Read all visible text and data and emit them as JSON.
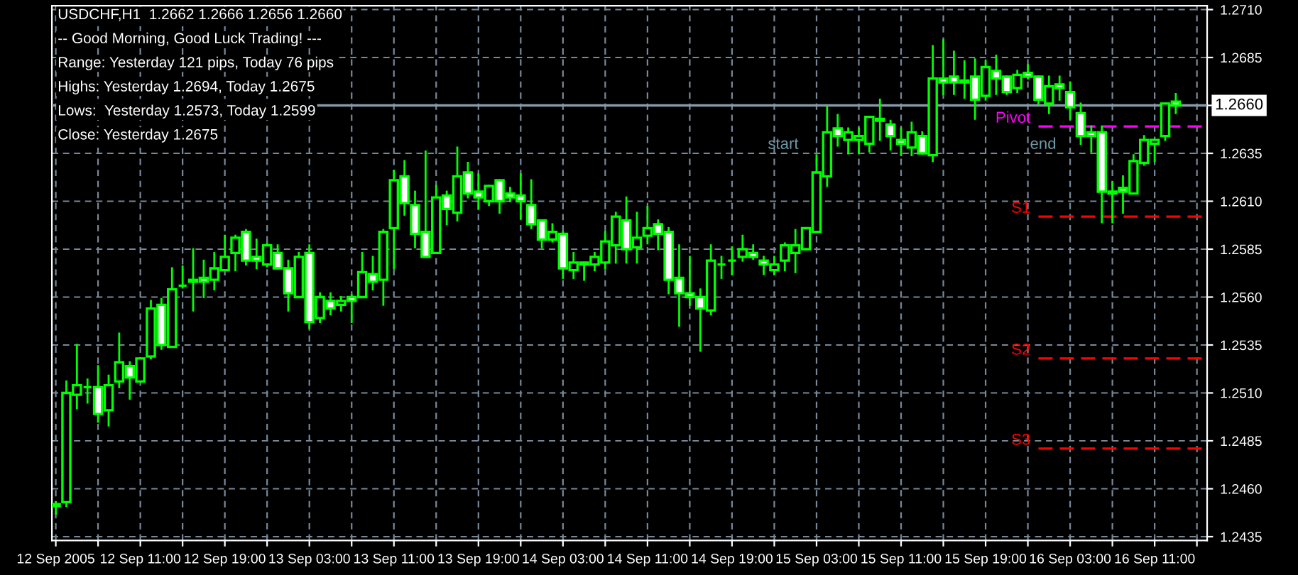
{
  "chart_data": {
    "type": "candlestick",
    "title": "USDCHF,H1  1.2662 1.2666 1.2656 1.2660",
    "annotations": [
      "-- Good Morning, Good Luck Trading! ---",
      "Range: Yesterday 121 pips, Today 76 pips",
      "Highs: Yesterday 1.2694, Today 1.2675",
      "Lows:  Yesterday 1.2573, Today 1.2599",
      "Close: Yesterday 1.2675",
      "start",
      "end"
    ],
    "color": "#00ff00",
    "x": [
      "2005-09-12T03:00",
      "2005-09-12T04:00",
      "2005-09-12T05:00",
      "2005-09-12T06:00",
      "2005-09-12T07:00",
      "2005-09-12T08:00",
      "2005-09-12T09:00",
      "2005-09-12T10:00",
      "2005-09-12T11:00",
      "2005-09-12T12:00",
      "2005-09-12T13:00",
      "2005-09-12T14:00",
      "2005-09-12T15:00",
      "2005-09-12T16:00",
      "2005-09-12T17:00",
      "2005-09-12T18:00",
      "2005-09-12T19:00",
      "2005-09-12T20:00",
      "2005-09-12T21:00",
      "2005-09-12T22:00",
      "2005-09-12T23:00",
      "2005-09-13T00:00",
      "2005-09-13T01:00",
      "2005-09-13T02:00",
      "2005-09-13T03:00",
      "2005-09-13T04:00",
      "2005-09-13T05:00",
      "2005-09-13T06:00",
      "2005-09-13T07:00",
      "2005-09-13T08:00",
      "2005-09-13T09:00",
      "2005-09-13T10:00",
      "2005-09-13T11:00",
      "2005-09-13T12:00",
      "2005-09-13T13:00",
      "2005-09-13T14:00",
      "2005-09-13T15:00",
      "2005-09-13T16:00",
      "2005-09-13T17:00",
      "2005-09-13T18:00",
      "2005-09-13T19:00",
      "2005-09-13T20:00",
      "2005-09-13T21:00",
      "2005-09-13T22:00",
      "2005-09-13T23:00",
      "2005-09-14T00:00",
      "2005-09-14T01:00",
      "2005-09-14T02:00",
      "2005-09-14T03:00",
      "2005-09-14T04:00",
      "2005-09-14T05:00",
      "2005-09-14T06:00",
      "2005-09-14T07:00",
      "2005-09-14T08:00",
      "2005-09-14T09:00",
      "2005-09-14T10:00",
      "2005-09-14T11:00",
      "2005-09-14T12:00",
      "2005-09-14T13:00",
      "2005-09-14T14:00",
      "2005-09-14T15:00",
      "2005-09-14T16:00",
      "2005-09-14T17:00",
      "2005-09-14T18:00",
      "2005-09-14T19:00",
      "2005-09-14T20:00",
      "2005-09-14T21:00",
      "2005-09-14T22:00",
      "2005-09-14T23:00",
      "2005-09-15T00:00",
      "2005-09-15T01:00",
      "2005-09-15T02:00",
      "2005-09-15T03:00",
      "2005-09-15T04:00",
      "2005-09-15T05:00",
      "2005-09-15T06:00",
      "2005-09-15T07:00",
      "2005-09-15T08:00",
      "2005-09-15T09:00",
      "2005-09-15T10:00",
      "2005-09-15T11:00",
      "2005-09-15T12:00",
      "2005-09-15T13:00",
      "2005-09-15T14:00",
      "2005-09-15T15:00",
      "2005-09-15T16:00",
      "2005-09-15T17:00",
      "2005-09-15T18:00",
      "2005-09-15T19:00",
      "2005-09-15T20:00",
      "2005-09-15T21:00",
      "2005-09-15T22:00",
      "2005-09-15T23:00",
      "2005-09-16T00:00",
      "2005-09-16T01:00",
      "2005-09-16T02:00",
      "2005-09-16T03:00",
      "2005-09-16T04:00",
      "2005-09-16T05:00",
      "2005-09-16T06:00",
      "2005-09-16T07:00",
      "2005-09-16T08:00",
      "2005-09-16T09:00",
      "2005-09-16T10:00",
      "2005-09-16T11:00",
      "2005-09-16T12:00",
      "2005-09-16T13:00"
    ],
    "ohlc": [
      [
        1.2451,
        1.2453,
        1.2447,
        1.2452
      ],
      [
        1.2453,
        1.2516,
        1.2451,
        1.251
      ],
      [
        1.2509,
        1.2535,
        1.2502,
        1.2514
      ],
      [
        1.2513,
        1.2517,
        1.2505,
        1.2513
      ],
      [
        1.2513,
        1.2524,
        1.2495,
        1.2499
      ],
      [
        1.2501,
        1.2519,
        1.2493,
        1.2514
      ],
      [
        1.2516,
        1.2541,
        1.2513,
        1.2526
      ],
      [
        1.2524,
        1.2526,
        1.2507,
        1.2518
      ],
      [
        1.2516,
        1.2528,
        1.2516,
        1.2528
      ],
      [
        1.2529,
        1.2558,
        1.2528,
        1.2554
      ],
      [
        1.2556,
        1.2559,
        1.2533,
        1.2535
      ],
      [
        1.2534,
        1.2575,
        1.2534,
        1.2564
      ],
      [
        1.2566,
        1.2576,
        1.2565,
        1.2566
      ],
      [
        1.2569,
        1.2585,
        1.2553,
        1.2568
      ],
      [
        1.257,
        1.2579,
        1.256,
        1.2568
      ],
      [
        1.2569,
        1.2583,
        1.2564,
        1.2575
      ],
      [
        1.2574,
        1.2592,
        1.2574,
        1.2581
      ],
      [
        1.2583,
        1.2592,
        1.2574,
        1.2591
      ],
      [
        1.2594,
        1.2595,
        1.2577,
        1.2579
      ],
      [
        1.2581,
        1.259,
        1.2575,
        1.2579
      ],
      [
        1.2577,
        1.2588,
        1.2576,
        1.2587
      ],
      [
        1.2583,
        1.2587,
        1.2575,
        1.2575
      ],
      [
        1.2575,
        1.2579,
        1.2553,
        1.2562
      ],
      [
        1.256,
        1.2583,
        1.256,
        1.2581
      ],
      [
        1.2583,
        1.2587,
        1.2544,
        1.2547
      ],
      [
        1.2549,
        1.2562,
        1.2547,
        1.256
      ],
      [
        1.2558,
        1.2562,
        1.2551,
        1.2554
      ],
      [
        1.2556,
        1.256,
        1.2553,
        1.2558
      ],
      [
        1.256,
        1.2561,
        1.2547,
        1.2558
      ],
      [
        1.256,
        1.2583,
        1.256,
        1.2573
      ],
      [
        1.2572,
        1.2581,
        1.2564,
        1.2568
      ],
      [
        1.2569,
        1.2595,
        1.2556,
        1.2594
      ],
      [
        1.2596,
        1.2626,
        1.2575,
        1.2621
      ],
      [
        1.2623,
        1.2631,
        1.2603,
        1.2609
      ],
      [
        1.2608,
        1.2615,
        1.2586,
        1.2593
      ],
      [
        1.2594,
        1.2636,
        1.2581,
        1.2581
      ],
      [
        1.2583,
        1.2618,
        1.2583,
        1.2612
      ],
      [
        1.2613,
        1.2615,
        1.2598,
        1.2606
      ],
      [
        1.2604,
        1.2638,
        1.26,
        1.2623
      ],
      [
        1.2625,
        1.263,
        1.2612,
        1.2614
      ],
      [
        1.2615,
        1.2624,
        1.2606,
        1.2612
      ],
      [
        1.261,
        1.2618,
        1.2608,
        1.2618
      ],
      [
        1.2621,
        1.2621,
        1.2604,
        1.261
      ],
      [
        1.2614,
        1.2617,
        1.261,
        1.2612
      ],
      [
        1.2613,
        1.2624,
        1.2601,
        1.261
      ],
      [
        1.2608,
        1.2621,
        1.2596,
        1.2598
      ],
      [
        1.26,
        1.26,
        1.2586,
        1.259
      ],
      [
        1.259,
        1.2598,
        1.2589,
        1.2594
      ],
      [
        1.2593,
        1.2594,
        1.257,
        1.2575
      ],
      [
        1.2574,
        1.2583,
        1.257,
        1.2578
      ],
      [
        1.2578,
        1.2578,
        1.2569,
        1.2577
      ],
      [
        1.2577,
        1.2583,
        1.2574,
        1.2581
      ],
      [
        1.2578,
        1.2594,
        1.2575,
        1.2589
      ],
      [
        1.2587,
        1.2604,
        1.2578,
        1.2602
      ],
      [
        1.26,
        1.2612,
        1.2578,
        1.2585
      ],
      [
        1.2586,
        1.2604,
        1.2578,
        1.2591
      ],
      [
        1.2592,
        1.2607,
        1.2588,
        1.2596
      ],
      [
        1.2598,
        1.26,
        1.2585,
        1.2593
      ],
      [
        1.2594,
        1.2596,
        1.2562,
        1.2569
      ],
      [
        1.257,
        1.2587,
        1.2545,
        1.2562
      ],
      [
        1.2562,
        1.2581,
        1.2556,
        1.256
      ],
      [
        1.256,
        1.2564,
        1.2532,
        1.2554
      ],
      [
        1.2553,
        1.2587,
        1.2551,
        1.2579
      ],
      [
        1.2577,
        1.2581,
        1.257,
        1.2577
      ],
      [
        1.2579,
        1.2586,
        1.2572,
        1.2579
      ],
      [
        1.2581,
        1.2592,
        1.2579,
        1.2585
      ],
      [
        1.2583,
        1.2587,
        1.258,
        1.2581
      ],
      [
        1.2579,
        1.2581,
        1.2572,
        1.2577
      ],
      [
        1.2574,
        1.2581,
        1.2572,
        1.2577
      ],
      [
        1.2579,
        1.2588,
        1.2574,
        1.2587
      ],
      [
        1.2583,
        1.2595,
        1.2573,
        1.2587
      ],
      [
        1.2585,
        1.2596,
        1.2585,
        1.2596
      ],
      [
        1.2594,
        1.2634,
        1.2594,
        1.2625
      ],
      [
        1.2623,
        1.2659,
        1.2618,
        1.2646
      ],
      [
        1.2648,
        1.2655,
        1.2639,
        1.2644
      ],
      [
        1.2642,
        1.2648,
        1.2635,
        1.2646
      ],
      [
        1.2642,
        1.2648,
        1.2635,
        1.2644
      ],
      [
        1.264,
        1.2654,
        1.2636,
        1.2654
      ],
      [
        1.2653,
        1.2663,
        1.2642,
        1.2652
      ],
      [
        1.265,
        1.2652,
        1.2637,
        1.2644
      ],
      [
        1.2642,
        1.2648,
        1.2634,
        1.264
      ],
      [
        1.2638,
        1.2651,
        1.2634,
        1.2646
      ],
      [
        1.2644,
        1.2646,
        1.2635,
        1.2635
      ],
      [
        1.2634,
        1.2691,
        1.2631,
        1.2674
      ],
      [
        1.2674,
        1.2694,
        1.2666,
        1.2672
      ],
      [
        1.2675,
        1.2688,
        1.2666,
        1.2672
      ],
      [
        1.2673,
        1.2683,
        1.2664,
        1.2672
      ],
      [
        1.2675,
        1.2684,
        1.2653,
        1.2663
      ],
      [
        1.2665,
        1.2683,
        1.2663,
        1.268
      ],
      [
        1.2678,
        1.2686,
        1.2666,
        1.2674
      ],
      [
        1.2675,
        1.2675,
        1.2666,
        1.2667
      ],
      [
        1.2669,
        1.2678,
        1.2667,
        1.2676
      ],
      [
        1.2677,
        1.2681,
        1.2674,
        1.2675
      ],
      [
        1.2675,
        1.2675,
        1.2661,
        1.2663
      ],
      [
        1.2661,
        1.2675,
        1.2656,
        1.267
      ],
      [
        1.2671,
        1.2675,
        1.2663,
        1.2669
      ],
      [
        1.2667,
        1.2672,
        1.2653,
        1.2659
      ],
      [
        1.2656,
        1.2661,
        1.264,
        1.2644
      ],
      [
        1.2646,
        1.2649,
        1.2636,
        1.2644
      ],
      [
        1.2646,
        1.2649,
        1.2599,
        1.2615
      ],
      [
        1.2615,
        1.262,
        1.2599,
        1.2614
      ],
      [
        1.2617,
        1.2623,
        1.2604,
        1.2615
      ],
      [
        1.2614,
        1.2634,
        1.2614,
        1.2631
      ],
      [
        1.263,
        1.2644,
        1.2629,
        1.2642
      ],
      [
        1.264,
        1.2642,
        1.2631,
        1.2642
      ],
      [
        1.2644,
        1.2661,
        1.2642,
        1.2661
      ],
      [
        1.2662,
        1.2666,
        1.2656,
        1.266
      ]
    ],
    "series": [
      {
        "type": "line",
        "name": "Pivot",
        "x": [
          "2005-09-16T00:00",
          "2005-09-16T15:58"
        ],
        "values": [
          1.2649,
          1.2649
        ],
        "color": "#ff00ff",
        "line_style": "dashed"
      },
      {
        "type": "line",
        "name": "S1",
        "x": [
          "2005-09-16T00:00",
          "2005-09-16T15:58"
        ],
        "values": [
          1.2602,
          1.2602
        ],
        "color": "#ff0000",
        "line_style": "dashed"
      },
      {
        "type": "line",
        "name": "S2",
        "x": [
          "2005-09-16T00:00",
          "2005-09-16T15:58"
        ],
        "values": [
          1.2528,
          1.2528
        ],
        "color": "#ff0000",
        "line_style": "dashed"
      },
      {
        "type": "line",
        "name": "S3",
        "x": [
          "2005-09-16T00:00",
          "2005-09-16T15:58"
        ],
        "values": [
          1.2481,
          1.2481
        ],
        "color": "#ff0000",
        "line_style": "dashed"
      }
    ],
    "ref_lines": [
      {
        "axis": "y",
        "value": 1.266,
        "label": "1.2660",
        "color": "#8899aa"
      }
    ],
    "xlim": [
      "2005-09-12T02:38",
      "2005-09-16T15:58"
    ],
    "xticks": [
      {
        "value": "2005-09-12T03:00",
        "label": "12 Sep 2005"
      },
      {
        "value": "2005-09-12T07:00",
        "label": null
      },
      {
        "value": "2005-09-12T11:00",
        "label": "12 Sep 11:00"
      },
      {
        "value": "2005-09-12T15:00",
        "label": null
      },
      {
        "value": "2005-09-12T19:00",
        "label": "12 Sep 19:00"
      },
      {
        "value": "2005-09-12T23:00",
        "label": null
      },
      {
        "value": "2005-09-13T03:00",
        "label": "13 Sep 03:00"
      },
      {
        "value": "2005-09-13T07:00",
        "label": null
      },
      {
        "value": "2005-09-13T11:00",
        "label": "13 Sep 11:00"
      },
      {
        "value": "2005-09-13T15:00",
        "label": null
      },
      {
        "value": "2005-09-13T19:00",
        "label": "13 Sep 19:00"
      },
      {
        "value": "2005-09-13T23:00",
        "label": null
      },
      {
        "value": "2005-09-14T03:00",
        "label": "14 Sep 03:00"
      },
      {
        "value": "2005-09-14T07:00",
        "label": null
      },
      {
        "value": "2005-09-14T11:00",
        "label": "14 Sep 11:00"
      },
      {
        "value": "2005-09-14T15:00",
        "label": null
      },
      {
        "value": "2005-09-14T19:00",
        "label": "14 Sep 19:00"
      },
      {
        "value": "2005-09-14T23:00",
        "label": null
      },
      {
        "value": "2005-09-15T03:00",
        "label": "15 Sep 03:00"
      },
      {
        "value": "2005-09-15T07:00",
        "label": null
      },
      {
        "value": "2005-09-15T11:00",
        "label": "15 Sep 11:00"
      },
      {
        "value": "2005-09-15T15:00",
        "label": null
      },
      {
        "value": "2005-09-15T19:00",
        "label": "15 Sep 19:00"
      },
      {
        "value": "2005-09-15T23:00",
        "label": null
      },
      {
        "value": "2005-09-16T03:00",
        "label": "16 Sep 03:00"
      },
      {
        "value": "2005-09-16T07:00",
        "label": null
      },
      {
        "value": "2005-09-16T11:00",
        "label": "16 Sep 11:00"
      },
      {
        "value": "2005-09-16T15:00",
        "label": null
      }
    ],
    "ylim": [
      1.2433,
      1.2712
    ],
    "yticks": [
      {
        "value": 1.2435,
        "label": "1.2435"
      },
      {
        "value": 1.246,
        "label": "1.2460"
      },
      {
        "value": 1.2485,
        "label": "1.2485"
      },
      {
        "value": 1.251,
        "label": "1.2510"
      },
      {
        "value": 1.2535,
        "label": "1.2535"
      },
      {
        "value": 1.256,
        "label": "1.2560"
      },
      {
        "value": 1.2585,
        "label": "1.2585"
      },
      {
        "value": 1.261,
        "label": "1.2610"
      },
      {
        "value": 1.2635,
        "label": "1.2635"
      },
      {
        "value": 1.266,
        "label": null
      },
      {
        "value": 1.2685,
        "label": "1.2685"
      },
      {
        "value": 1.271,
        "label": "1.2710"
      }
    ],
    "grid": true,
    "legend": false
  }
}
